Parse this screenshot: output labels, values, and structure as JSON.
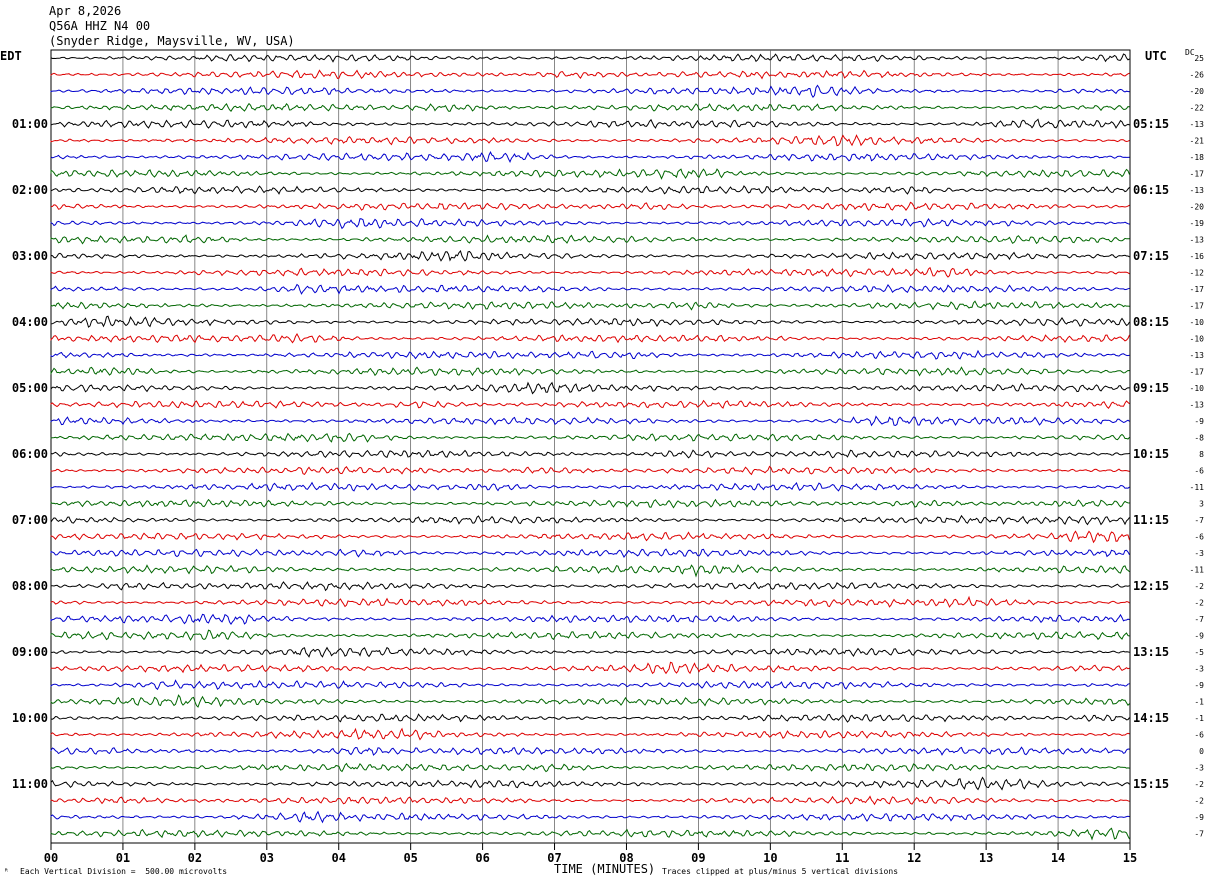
{
  "header": {
    "date": "Apr 8,2026",
    "station": "Q56A HHZ N4 00",
    "location": "(Snyder Ridge, Maysville, WV, USA)"
  },
  "left_tz": "EDT",
  "right_tz": "UTC",
  "dc_label": "DC",
  "footer": {
    "scale_note": "Each Vertical Division =  500.00 microvolts",
    "xlabel": "TIME (MINUTES)",
    "clip_note": "Traces clipped at plus/minus 5 vertical divisions"
  },
  "colors": {
    "line_colors": [
      "#000000",
      "#dd0000",
      "#0000cc",
      "#006600"
    ],
    "grid": "#000000",
    "background": "#ffffff"
  },
  "chart_data": {
    "type": "line",
    "x_ticks": [
      "00",
      "01",
      "02",
      "03",
      "04",
      "05",
      "06",
      "07",
      "08",
      "09",
      "10",
      "11",
      "12",
      "13",
      "14",
      "15"
    ],
    "xlim": [
      0,
      15
    ],
    "rows_per_hour": 4,
    "left_hour_labels": [
      "01:00",
      "02:00",
      "03:00",
      "04:00",
      "05:00",
      "06:00",
      "07:00",
      "08:00",
      "09:00",
      "10:00",
      "11:00"
    ],
    "right_hour_labels": [
      "05:15",
      "06:15",
      "07:15",
      "08:15",
      "09:15",
      "10:15",
      "11:15",
      "12:15",
      "13:15",
      "14:15",
      "15:15"
    ],
    "dc_offsets": [
      "25",
      "-26",
      "-20",
      "-22",
      "-13",
      "-21",
      "-18",
      "-17",
      "-13",
      "-20",
      "-19",
      "-13",
      "-16",
      "-12",
      "-17",
      "-17",
      "-10",
      "-10",
      "-13",
      "-17",
      "-10",
      "-13",
      "-9",
      "-8",
      "8",
      "-6",
      "-11",
      "3",
      "-7",
      "-6",
      "-3",
      "-11",
      "-2",
      "-2",
      "-7",
      "-9",
      "-5",
      "-3",
      "-9",
      "-1",
      "-1",
      "-6",
      "0",
      "-3",
      "-2",
      "-2",
      "-9",
      "-7"
    ]
  }
}
